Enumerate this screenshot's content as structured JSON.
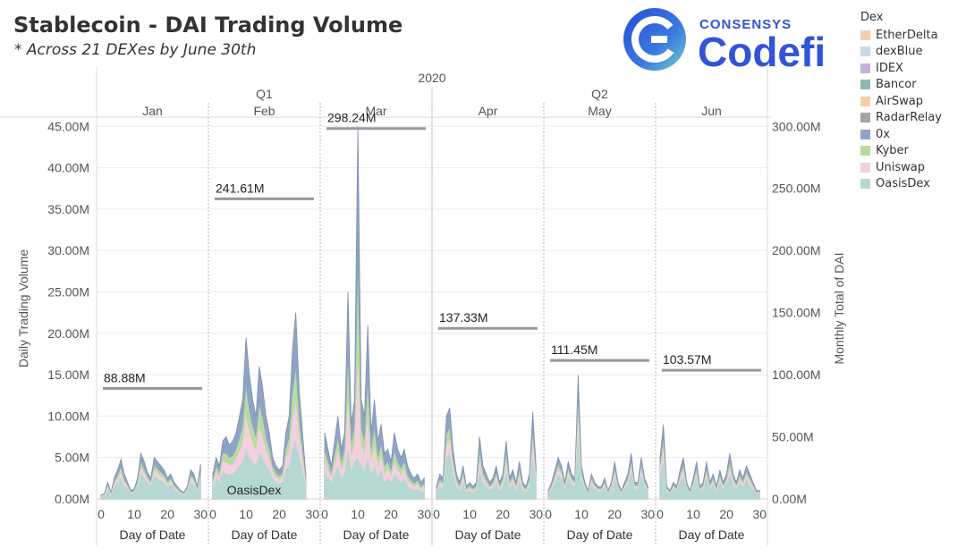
{
  "header": {
    "title": "Stablecoin - DAI Trading Volume",
    "subtitle": "*  Across 21 DEXes by June 30th",
    "logo_small": "CONSENSYS",
    "logo_big": "Codefi"
  },
  "legend": {
    "title": "Dex",
    "items": [
      {
        "label": "EtherDelta",
        "color": "#f2cfb1"
      },
      {
        "label": "dexBlue",
        "color": "#c9d9ea"
      },
      {
        "label": "IDEX",
        "color": "#c6b2dc"
      },
      {
        "label": "Bancor",
        "color": "#8fb7b6"
      },
      {
        "label": "AirSwap",
        "color": "#f5cfa6"
      },
      {
        "label": "RadarRelay",
        "color": "#a4a4a4"
      },
      {
        "label": "0x",
        "color": "#8fa4c4"
      },
      {
        "label": "Kyber",
        "color": "#b8dca0"
      },
      {
        "label": "Uniswap",
        "color": "#f4cfe0"
      },
      {
        "label": "OasisDex",
        "color": "#b6d8d3"
      }
    ]
  },
  "chart_data": {
    "type": "area",
    "year_label": "2020",
    "quarters": [
      {
        "label": "Q1",
        "months": [
          "Jan",
          "Feb",
          "Mar"
        ]
      },
      {
        "label": "Q2",
        "months": [
          "Apr",
          "May",
          "Jun"
        ]
      }
    ],
    "ylabel_left": "Daily Trading Volume",
    "ylabel_right": "Monthly Total of DAI",
    "xlabel": "Day of Date",
    "x_ticks": [
      "0",
      "10",
      "20",
      "30"
    ],
    "xlim": [
      0,
      31
    ],
    "left_axis": {
      "ylim": [
        0,
        46
      ],
      "ticks": [
        "0.00M",
        "5.00M",
        "10.00M",
        "15.00M",
        "20.00M",
        "25.00M",
        "30.00M",
        "35.00M",
        "40.00M",
        "45.00M"
      ]
    },
    "right_axis": {
      "ylim": [
        0,
        306.67
      ],
      "ticks": [
        "0.00M",
        "50.00M",
        "100.00M",
        "150.00M",
        "200.00M",
        "250.00M",
        "300.00M"
      ]
    },
    "area_label": "OasisDex",
    "months": [
      {
        "name": "Jan",
        "monthly_total": 88.88,
        "monthly_total_label": "88.88M",
        "total": [
          0.5,
          0.6,
          2.0,
          0.8,
          2.5,
          3.5,
          4.8,
          3.0,
          2.0,
          1.0,
          1.2,
          2.5,
          5.5,
          4.5,
          3.2,
          2.5,
          5.0,
          4.5,
          4.0,
          3.5,
          2.5,
          3.0,
          2.0,
          1.5,
          1.0,
          0.8,
          1.5,
          3.5,
          3.0,
          1.5,
          4.2
        ],
        "oasis": [
          0.3,
          0.4,
          1.3,
          0.5,
          1.5,
          2.0,
          2.5,
          1.5,
          1.2,
          0.6,
          0.7,
          1.5,
          3.0,
          2.5,
          2.0,
          1.5,
          2.8,
          2.5,
          2.2,
          2.0,
          1.5,
          1.8,
          1.2,
          0.9,
          0.6,
          0.5,
          0.9,
          2.0,
          1.7,
          0.9,
          2.3
        ]
      },
      {
        "name": "Feb",
        "monthly_total": 241.61,
        "monthly_total_label": "241.61M",
        "total": [
          3.0,
          5.0,
          4.0,
          7.0,
          7.5,
          6.5,
          7.0,
          8.0,
          10.0,
          12.0,
          19.5,
          15.0,
          12.0,
          10.0,
          16.0,
          13.5,
          10.0,
          8.0,
          5.0,
          4.0,
          3.5,
          4.0,
          8.0,
          10.0,
          18.0,
          22.5,
          13.0,
          8.0,
          3.0
        ],
        "oasis": [
          1.5,
          2.5,
          2.0,
          3.5,
          3.0,
          3.0,
          3.0,
          3.5,
          4.0,
          4.5,
          6.0,
          5.0,
          4.5,
          4.0,
          5.5,
          5.0,
          4.0,
          3.5,
          2.5,
          2.0,
          1.8,
          2.0,
          3.5,
          4.0,
          6.0,
          7.0,
          5.0,
          3.5,
          1.5
        ]
      },
      {
        "name": "Mar",
        "monthly_total": 298.24,
        "monthly_total_label": "298.24M",
        "total": [
          8.0,
          6.0,
          4.0,
          7.0,
          10.0,
          6.0,
          8.0,
          25.0,
          9.0,
          12.0,
          45.0,
          12.0,
          10.0,
          21.0,
          8.0,
          12.0,
          7.0,
          9.0,
          5.5,
          6.0,
          4.5,
          8.0,
          6.0,
          5.0,
          6.0,
          4.0,
          3.0,
          2.5,
          3.0,
          2.0,
          2.5
        ],
        "oasis": [
          3.0,
          2.5,
          2.0,
          3.0,
          4.0,
          2.5,
          3.0,
          6.0,
          3.5,
          4.5,
          5.0,
          4.0,
          3.5,
          5.0,
          3.0,
          4.0,
          2.5,
          3.5,
          2.0,
          2.5,
          2.0,
          3.0,
          2.5,
          2.0,
          2.5,
          1.5,
          1.2,
          1.0,
          1.2,
          0.8,
          1.0
        ]
      },
      {
        "name": "Apr",
        "monthly_total": 137.33,
        "monthly_total_label": "137.33M",
        "total": [
          1.5,
          3.0,
          2.5,
          10.0,
          11.0,
          6.0,
          3.0,
          2.0,
          4.0,
          1.5,
          2.0,
          1.5,
          2.0,
          7.5,
          4.0,
          3.0,
          2.0,
          2.5,
          4.0,
          2.0,
          3.0,
          7.0,
          2.5,
          3.5,
          2.0,
          4.5,
          2.0,
          1.5,
          3.0,
          10.5,
          4.0
        ],
        "oasis": [
          0.8,
          1.5,
          1.3,
          5.0,
          5.5,
          3.0,
          1.5,
          1.0,
          2.0,
          0.8,
          1.0,
          0.8,
          1.0,
          3.5,
          2.0,
          1.5,
          1.0,
          1.3,
          2.0,
          1.0,
          1.5,
          3.5,
          1.3,
          1.8,
          1.0,
          2.2,
          1.0,
          0.8,
          1.5,
          5.0,
          2.0
        ]
      },
      {
        "name": "May",
        "monthly_total": 111.45,
        "monthly_total_label": "111.45M",
        "total": [
          1.0,
          2.0,
          3.5,
          5.0,
          4.0,
          2.0,
          4.5,
          3.0,
          2.5,
          15.0,
          4.0,
          2.0,
          1.0,
          3.0,
          2.0,
          1.5,
          1.5,
          2.5,
          1.0,
          2.0,
          4.5,
          2.0,
          1.0,
          2.0,
          3.0,
          5.5,
          2.0,
          2.0,
          5.0,
          2.5,
          1.5
        ],
        "oasis": [
          0.6,
          1.2,
          2.0,
          3.0,
          2.5,
          1.2,
          2.5,
          1.8,
          1.5,
          8.0,
          2.3,
          1.2,
          0.6,
          1.8,
          1.2,
          0.9,
          0.9,
          1.5,
          0.6,
          1.2,
          2.6,
          1.2,
          0.6,
          1.2,
          1.8,
          3.2,
          1.2,
          1.2,
          2.9,
          1.5,
          0.9
        ]
      },
      {
        "name": "Jun",
        "monthly_total": 103.57,
        "monthly_total_label": "103.57M",
        "total": [
          5.0,
          9.0,
          1.5,
          1.0,
          2.0,
          1.5,
          3.5,
          5.0,
          2.0,
          1.0,
          2.5,
          4.5,
          1.5,
          2.0,
          4.5,
          2.0,
          3.0,
          1.5,
          3.5,
          2.0,
          3.0,
          5.5,
          3.0,
          2.0,
          3.5,
          2.5,
          4.0,
          3.0,
          2.0,
          1.0,
          1.0
        ],
        "oasis": [
          2.8,
          4.8,
          0.9,
          0.6,
          1.2,
          0.9,
          2.0,
          2.8,
          1.2,
          0.6,
          1.5,
          2.5,
          0.9,
          1.2,
          2.5,
          1.2,
          1.8,
          0.9,
          2.0,
          1.2,
          1.8,
          3.0,
          1.8,
          1.2,
          2.0,
          1.5,
          2.3,
          1.8,
          1.2,
          0.6,
          0.6
        ]
      }
    ]
  }
}
